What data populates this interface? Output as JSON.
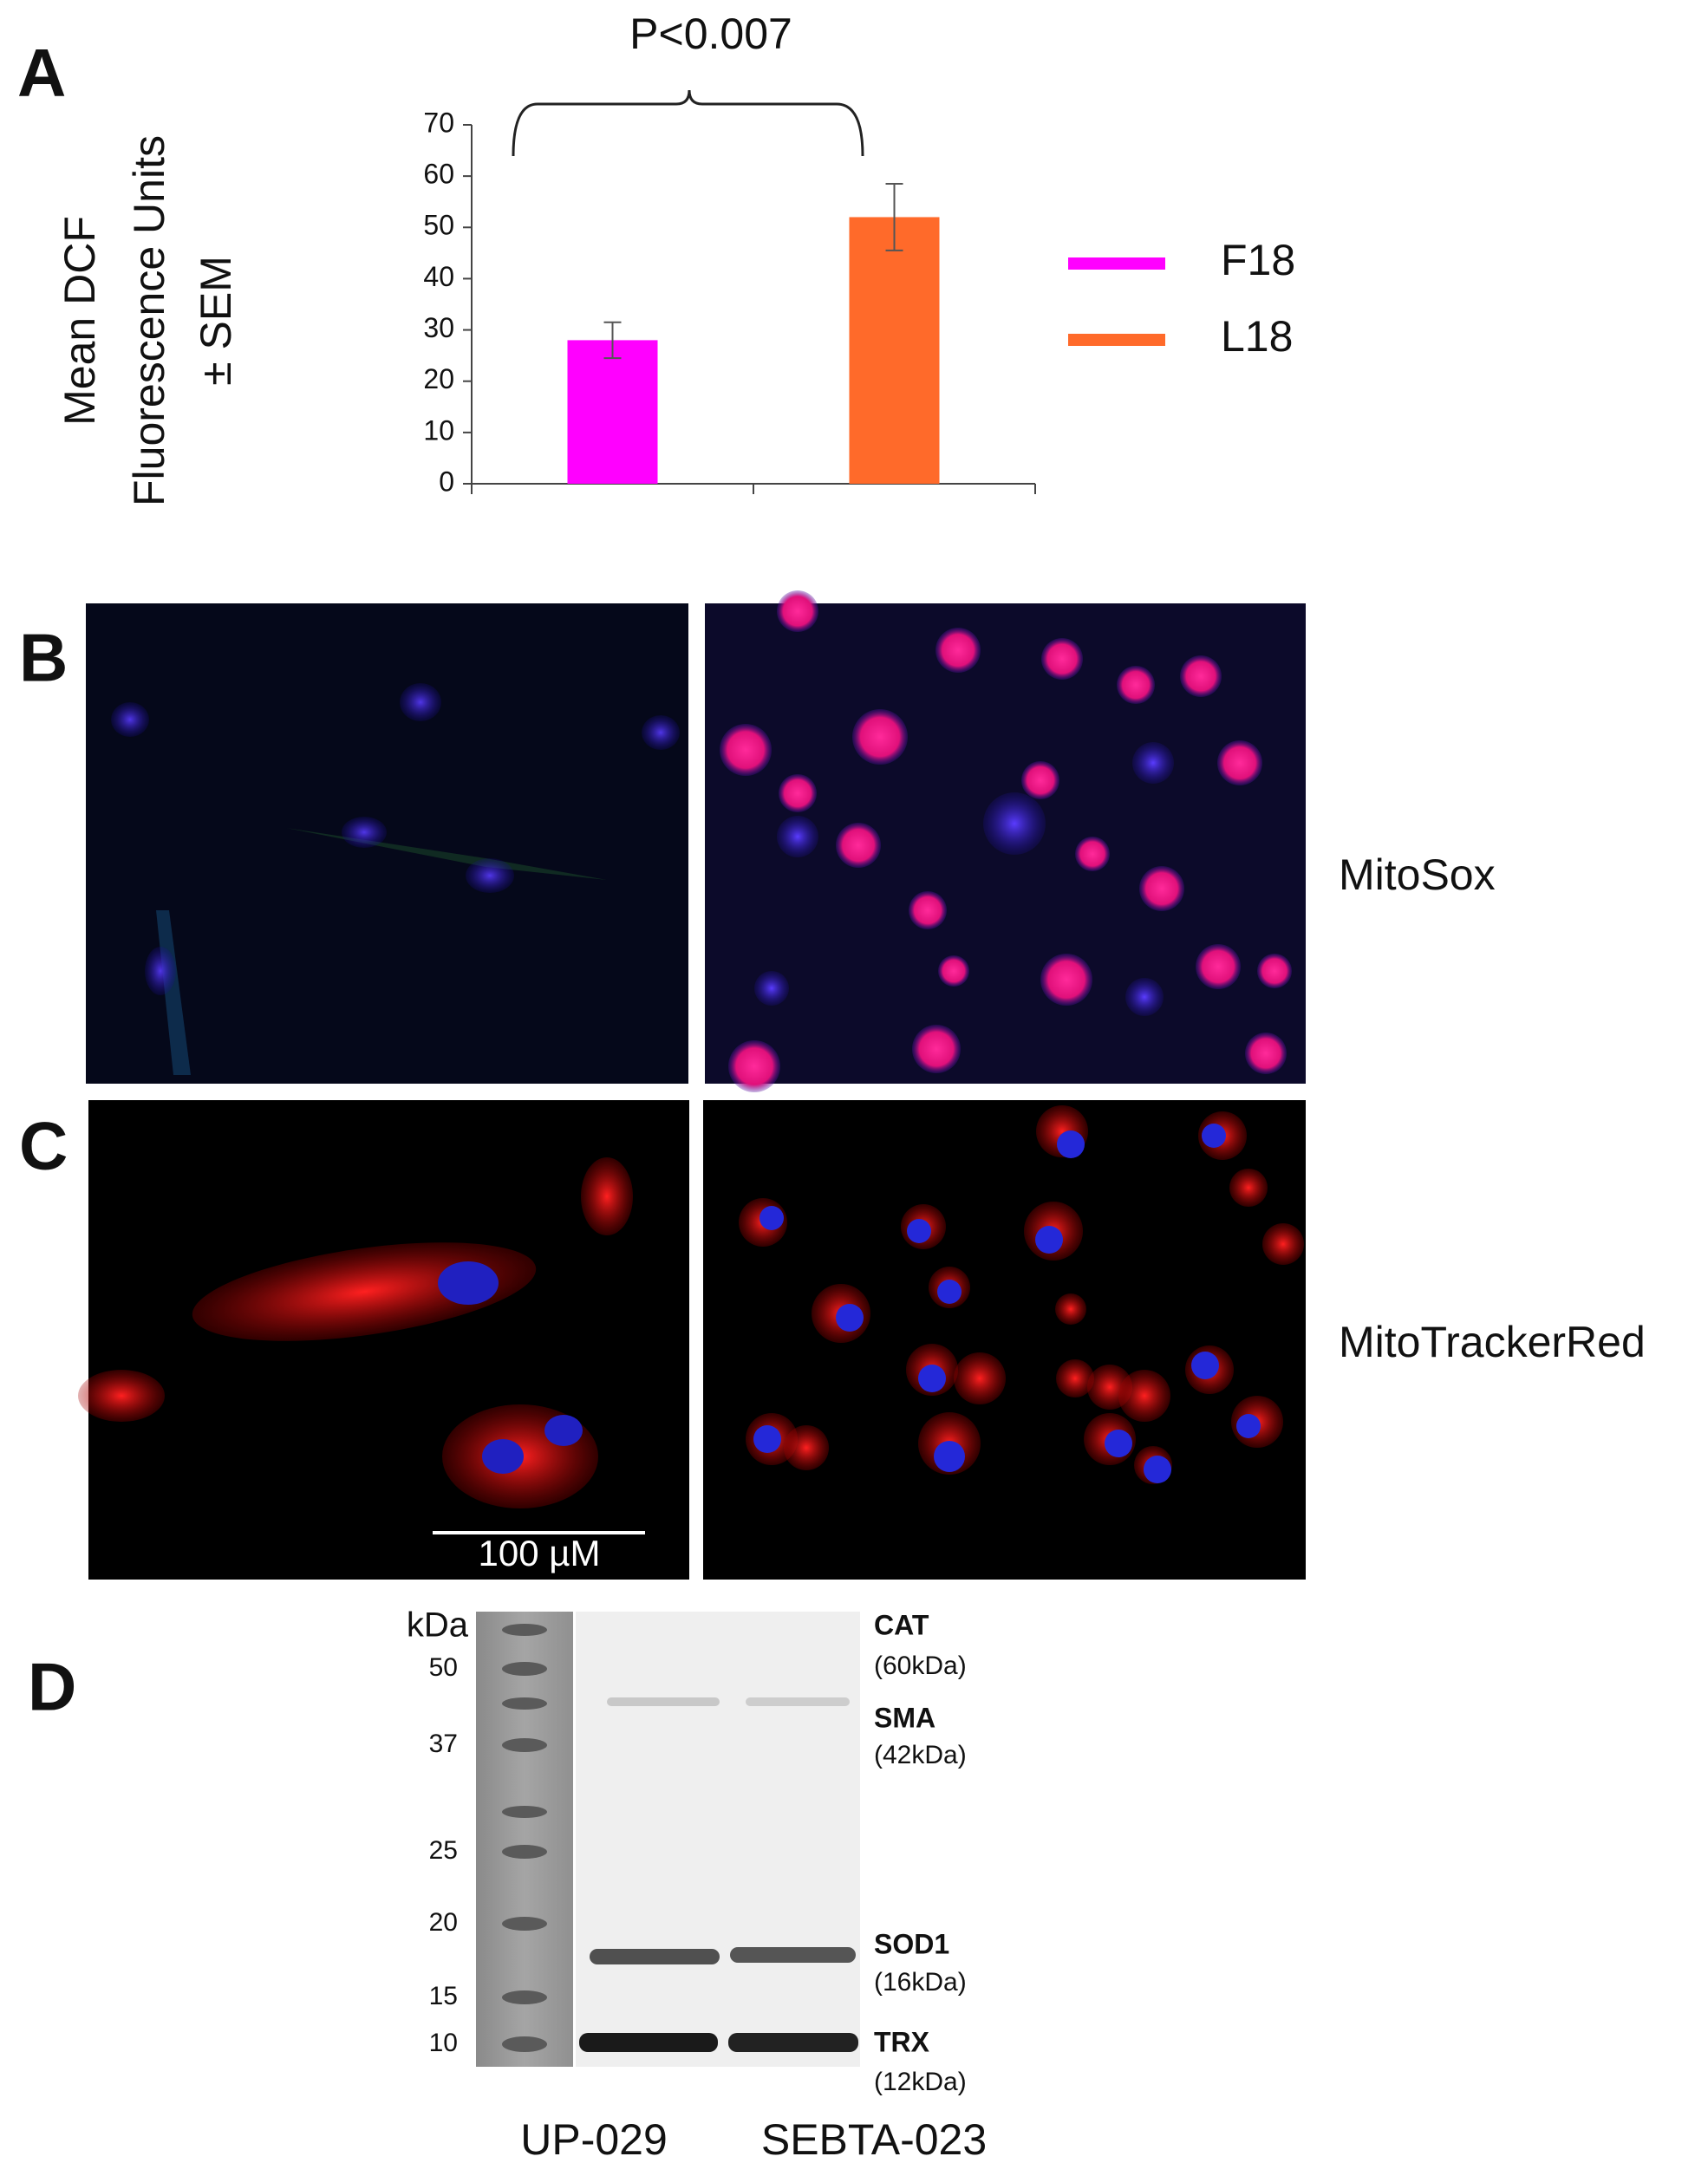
{
  "chart_data": {
    "type": "bar",
    "panel_label": "A",
    "y_label": [
      "Mean DCF",
      "Fluorescence Units",
      "± SEM"
    ],
    "annotation": "P<0.007",
    "ylim": [
      0,
      70
    ],
    "yticks": [
      0,
      10,
      20,
      30,
      40,
      50,
      60,
      70
    ],
    "series": [
      {
        "name": "F18",
        "color": "#ff00ff",
        "values": [
          28
        ],
        "errors": [
          3.5
        ]
      },
      {
        "name": "L18",
        "color": "#ff6a2a",
        "values": [
          52
        ],
        "errors": [
          6.5
        ]
      }
    ]
  },
  "panels": {
    "B": {
      "label": "B",
      "stain": "MitoSox"
    },
    "C": {
      "label": "C",
      "stain": "MitoTrackerRed",
      "scale_bar": "100 µM"
    },
    "D": {
      "label": "D",
      "unit": "kDa",
      "ladder": [
        "50",
        "37",
        "25",
        "20",
        "15",
        "10"
      ],
      "bands": [
        {
          "name": "CAT",
          "size": "(60kDa)"
        },
        {
          "name": "SMA",
          "size": "(42kDa)"
        },
        {
          "name": "SOD1",
          "size": "(16kDa)"
        },
        {
          "name": "TRX",
          "size": "(12kDa)"
        }
      ],
      "lanes": [
        "UP-029",
        "SEBTA-023"
      ]
    }
  }
}
